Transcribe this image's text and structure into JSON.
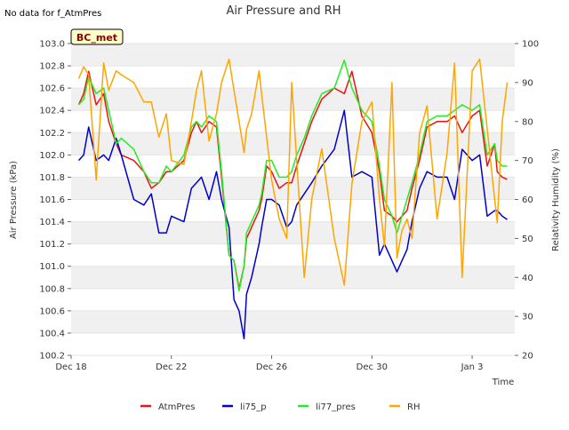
{
  "chart_data": {
    "type": "line",
    "title": "Air Pressure and RH",
    "note": "No data for f_AtmPres",
    "badge": "BC_met",
    "xlabel": "Time",
    "ylabel_left": "Air Pressure (kPa)",
    "ylabel_right": "Relativity Humidity (%)",
    "x_ticks": [
      "Dec 18",
      "Dec 22",
      "Dec 26",
      "Dec 30",
      "Jan 3"
    ],
    "x_tick_days": [
      0,
      4,
      8,
      12,
      16
    ],
    "xlim_days": [
      0,
      17.7
    ],
    "ylim_left": [
      100.2,
      103.0
    ],
    "ylim_right": [
      20,
      100
    ],
    "y_ticks_left": [
      "100.2",
      "100.4",
      "100.6",
      "100.8",
      "101.0",
      "101.2",
      "101.4",
      "101.6",
      "101.8",
      "102.0",
      "102.2",
      "102.4",
      "102.6",
      "102.8",
      "103.0"
    ],
    "y_ticks_right": [
      "20",
      "30",
      "40",
      "50",
      "60",
      "70",
      "80",
      "90",
      "100"
    ],
    "grid": "horizontal bands",
    "legend_position": "bottom",
    "x_day": [
      0.3,
      0.5,
      0.7,
      1.0,
      1.3,
      1.5,
      1.8,
      2.0,
      2.5,
      2.9,
      3.2,
      3.5,
      3.8,
      4.0,
      4.5,
      4.8,
      5.0,
      5.2,
      5.5,
      5.8,
      6.0,
      6.3,
      6.5,
      6.7,
      6.9,
      7.0,
      7.2,
      7.5,
      7.6,
      7.8,
      8.0,
      8.3,
      8.6,
      8.8,
      9.0,
      9.3,
      9.6,
      10.0,
      10.5,
      10.9,
      11.2,
      11.6,
      12.0,
      12.3,
      12.5,
      12.8,
      13.0,
      13.2,
      13.4,
      13.6,
      13.9,
      14.2,
      14.6,
      15.0,
      15.3,
      15.6,
      16.0,
      16.3,
      16.6,
      16.9,
      17.0,
      17.2,
      17.4
    ],
    "series": [
      {
        "name": "AtmPres",
        "axis": "left",
        "color": "#ee1111",
        "values": [
          102.45,
          102.55,
          102.75,
          102.45,
          102.55,
          102.3,
          102.1,
          102.0,
          101.95,
          101.85,
          101.7,
          101.75,
          101.85,
          101.85,
          101.95,
          102.2,
          102.3,
          102.2,
          102.3,
          102.25,
          101.8,
          101.1,
          101.05,
          100.8,
          101.0,
          101.25,
          101.35,
          101.5,
          101.6,
          101.9,
          101.85,
          101.7,
          101.75,
          101.75,
          101.9,
          102.1,
          102.3,
          102.5,
          102.6,
          102.55,
          102.75,
          102.35,
          102.2,
          101.85,
          101.5,
          101.45,
          101.4,
          101.45,
          101.5,
          101.7,
          101.95,
          102.25,
          102.3,
          102.3,
          102.35,
          102.2,
          102.35,
          102.4,
          101.9,
          102.1,
          101.85,
          101.8,
          101.78
        ]
      },
      {
        "name": "li75_p",
        "axis": "left",
        "color": "#0000cc",
        "values": [
          101.95,
          102.0,
          102.25,
          101.95,
          102.0,
          101.95,
          102.15,
          102.0,
          101.6,
          101.55,
          101.65,
          101.3,
          101.3,
          101.45,
          101.4,
          101.7,
          101.75,
          101.8,
          101.6,
          101.85,
          101.6,
          101.35,
          100.7,
          100.6,
          100.35,
          100.75,
          100.9,
          101.2,
          101.35,
          101.6,
          101.6,
          101.55,
          101.35,
          101.4,
          101.55,
          101.65,
          101.75,
          101.9,
          102.05,
          102.4,
          101.8,
          101.85,
          101.8,
          101.1,
          101.2,
          101.05,
          100.95,
          101.05,
          101.15,
          101.4,
          101.7,
          101.85,
          101.8,
          101.8,
          101.6,
          102.05,
          101.95,
          102.0,
          101.45,
          101.5,
          101.5,
          101.45,
          101.42
        ]
      },
      {
        "name": "li77_pres",
        "axis": "left",
        "color": "#22ee22",
        "values": [
          102.45,
          102.5,
          102.7,
          102.55,
          102.6,
          102.4,
          102.1,
          102.15,
          102.05,
          101.85,
          101.75,
          101.75,
          101.9,
          101.85,
          102.0,
          102.25,
          102.3,
          102.25,
          102.35,
          102.3,
          101.85,
          101.1,
          101.05,
          100.78,
          101.0,
          101.3,
          101.4,
          101.55,
          101.65,
          101.95,
          101.95,
          101.8,
          101.8,
          101.85,
          102.0,
          102.15,
          102.35,
          102.55,
          102.6,
          102.85,
          102.6,
          102.4,
          102.3,
          101.9,
          101.6,
          101.45,
          101.3,
          101.45,
          101.6,
          101.75,
          102.0,
          102.3,
          102.35,
          102.35,
          102.4,
          102.45,
          102.4,
          102.45,
          102.0,
          102.1,
          101.95,
          101.9,
          101.9
        ]
      },
      {
        "name": "RH",
        "axis": "right",
        "color": "#ffa500",
        "values": [
          91,
          94,
          92,
          65,
          95,
          88,
          93,
          92,
          90,
          85,
          85,
          76,
          82,
          70,
          69,
          80,
          88,
          93,
          75,
          82,
          90,
          96,
          88,
          80,
          72,
          78,
          82,
          93,
          87,
          76,
          65,
          55,
          50,
          90,
          70,
          40,
          60,
          73,
          50,
          38,
          64,
          80,
          85,
          60,
          48,
          90,
          45,
          52,
          55,
          50,
          77,
          84,
          55,
          72,
          95,
          40,
          93,
          96,
          78,
          60,
          54,
          80,
          90
        ]
      }
    ]
  }
}
